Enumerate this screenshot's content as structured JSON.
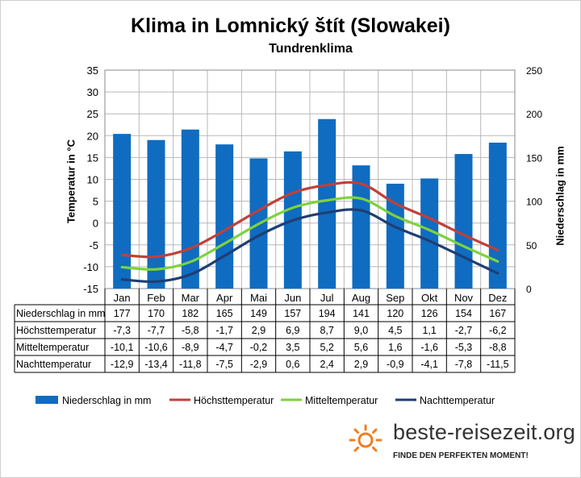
{
  "chart_data": {
    "type": "bar+line",
    "title": "Klima in Lomnický štít (Slowakei)",
    "subtitle": "Tundrenklima",
    "ylabel_left": "Temperatur in °C",
    "ylabel_right": "Niederschlag in mm",
    "ylim_left": [
      -15,
      35
    ],
    "ylim_right": [
      0,
      250
    ],
    "left_ticks": [
      "35",
      "30",
      "25",
      "20",
      "15",
      "10",
      "5",
      "0",
      "-5",
      "-10",
      "-15"
    ],
    "right_ticks": [
      "250",
      "200",
      "150",
      "100",
      "50",
      "0"
    ],
    "grid": true,
    "legend_position": "bottom",
    "categories": [
      "Jan",
      "Feb",
      "Mar",
      "Apr",
      "Mai",
      "Jun",
      "Jul",
      "Aug",
      "Sep",
      "Okt",
      "Nov",
      "Dez"
    ],
    "bars": {
      "name": "Niederschlag in mm",
      "axis": "right",
      "color": "#0f6cc0",
      "values": [
        177,
        170,
        182,
        165,
        149,
        157,
        194,
        141,
        120,
        126,
        154,
        167
      ]
    },
    "lines": [
      {
        "name": "Höchsttemperatur",
        "color": "#c0403a",
        "values": [
          -7.3,
          -7.7,
          -5.8,
          -1.7,
          2.9,
          6.9,
          8.7,
          9.0,
          4.5,
          1.1,
          -2.7,
          -6.2
        ]
      },
      {
        "name": "Mitteltemperatur",
        "color": "#7ed23c",
        "values": [
          -10.1,
          -10.6,
          -8.9,
          -4.7,
          -0.2,
          3.5,
          5.2,
          5.6,
          1.6,
          -1.6,
          -5.3,
          -8.8
        ]
      },
      {
        "name": "Nachttemperatur",
        "color": "#1f3e73",
        "values": [
          -12.9,
          -13.4,
          -11.8,
          -7.5,
          -2.9,
          0.6,
          2.4,
          2.9,
          -0.9,
          -4.1,
          -7.8,
          -11.5
        ]
      }
    ],
    "table": [
      {
        "label": "Niederschlag in mm",
        "values": [
          "177",
          "170",
          "182",
          "165",
          "149",
          "157",
          "194",
          "141",
          "120",
          "126",
          "154",
          "167"
        ]
      },
      {
        "label": "Höchsttemperatur",
        "values": [
          "-7,3",
          "-7,7",
          "-5,8",
          "-1,7",
          "2,9",
          "6,9",
          "8,7",
          "9,0",
          "4,5",
          "1,1",
          "-2,7",
          "-6,2"
        ]
      },
      {
        "label": "Mitteltemperatur",
        "values": [
          "-10,1",
          "-10,6",
          "-8,9",
          "-4,7",
          "-0,2",
          "3,5",
          "5,2",
          "5,6",
          "1,6",
          "-1,6",
          "-5,3",
          "-8,8"
        ]
      },
      {
        "label": "Nachttemperatur",
        "values": [
          "-12,9",
          "-13,4",
          "-11,8",
          "-7,5",
          "-2,9",
          "0,6",
          "2,4",
          "2,9",
          "-0,9",
          "-4,1",
          "-7,8",
          "-11,5"
        ]
      }
    ]
  },
  "branding": {
    "site": "beste-reisezeit.org",
    "tagline": "FINDE DEN PERFEKTEN MOMENT!",
    "sun_color": "#f07d1e"
  }
}
